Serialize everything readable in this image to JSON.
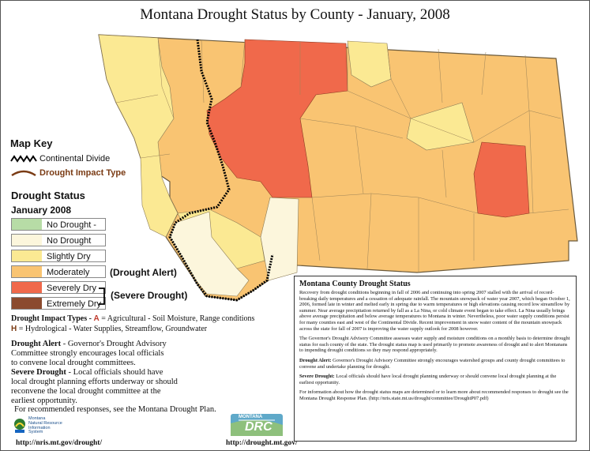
{
  "title": "Montana Drought Status by County - January, 2008",
  "map_key": {
    "heading": "Map Key",
    "continental_divide": "Continental Divide",
    "drought_impact_type": "Drought Impact Type"
  },
  "drought_status": {
    "heading": "Drought Status",
    "date": "January 2008",
    "levels": [
      {
        "label": "No Drought - Moist",
        "color": "#b7dca6"
      },
      {
        "label": "No Drought",
        "color": "#fcf6dc"
      },
      {
        "label": "Slightly Dry",
        "color": "#fbe993"
      },
      {
        "label": "Moderately Dry",
        "color": "#f9c472"
      },
      {
        "label": "Severely Dry",
        "color": "#f0694b"
      },
      {
        "label": "Extremely Dry",
        "color": "#8b4a2e"
      }
    ],
    "alert_tag": "(Drought Alert)",
    "severe_tag": "(Severe Drought)"
  },
  "impact_types": {
    "heading": "Drought Impact Types -",
    "a_letter": "A",
    "a_text": "= Agricultural - Soil Moisture, Range conditions",
    "h_letter": "H",
    "h_text": "= Hydrological - Water Supplies, Streamflow, Groundwater"
  },
  "definitions": {
    "alert_title": "Drought Alert",
    "alert_text": " - Governor's Drought Advisory Committee strongly encourages local officials to convene local drought committees.",
    "severe_title": "Severe Drought",
    "severe_text": " - Local officials should have local drought planning efforts underway or should reconvene the local drought committee at the earliest opportunity.",
    "recommend": "For recommended responses, see the Montana Drought Plan."
  },
  "info_box": {
    "title": "Montana County Drought Status",
    "p1": "Recovery from drought conditions beginning in fall of 2006 and continuing into spring 2007 stalled with the arrival of record-breaking daily temperatures and a cessation of adequate rainfall. The mountain snowpack of water year 2007, which began October 1, 2006, formed late in winter and melted early in spring due to warm temperatures or high elevations causing record low streamflow by summer. Near average precipitation returned by fall as a La Nina, or cold climate event began to take effect. La Nina usually brings above average precipitation and below average temperatures to Montana in winter. Nevertheless, poor water supply conditions persist for many counties east and west of the Continental Divide. Recent improvement in snow water content of the mountain snowpack across the state for fall of 2007 is improving the water supply outlook for 2008 however.",
    "p2": "The Governor's Drought Advisory Committee assesses water supply and moisture conditions on a monthly basis to determine drought status for each county of the state. The drought status map is used primarily to promote awareness of drought and to alert Montanans to impending drought conditions so they may respond appropriately.",
    "p3_title": "Drought Alert:",
    "p3": " Governor's Drought Advisory Committee strongly encourages watershed groups and county drought committees to convene and undertake planning for drought.",
    "p4_title": "Severe Drought:",
    "p4": " Local officials should have local drought planning underway or should convene local drought planning at the earliest opportunity.",
    "p5": "For information about how the drought status maps are determined or to learn more about recommended responses to drought see the Montana Drought Response Plan. (http://nris.state.mt.us/drought/committee/DroughtP07.pdf)"
  },
  "footer": {
    "nris_url": "http://nris.mt.gov/drought/",
    "drought_url": "http://drought.mt.gov/",
    "nris_logo_text": [
      "Montana",
      "Natural Resource",
      "Information",
      "System"
    ],
    "drc_logo_text": "DRC",
    "drc_logo_top": "MONTANA"
  }
}
